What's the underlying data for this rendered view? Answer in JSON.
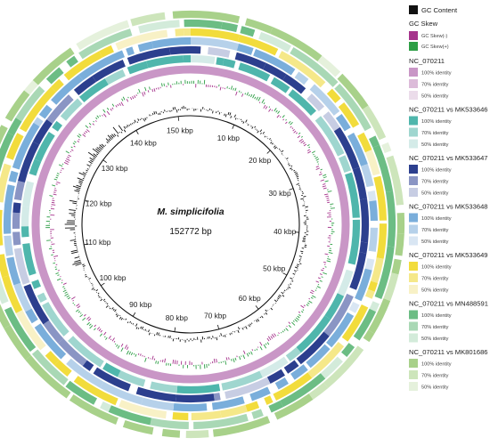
{
  "genome": {
    "name": "M. simplicifolia",
    "length_label": "152772 bp",
    "length_bp": 152772
  },
  "kbp_labels": [
    "10 kbp",
    "20 kbp",
    "30 kbp",
    "40 kbp",
    "50 kbp",
    "60 kbp",
    "70 kbp",
    "80 kbp",
    "90 kbp",
    "100 kbp",
    "110 kbp",
    "120 kbp",
    "130 kbp",
    "140 kbp",
    "150 kbp"
  ],
  "kbp_positions": [
    10000,
    20000,
    30000,
    40000,
    50000,
    60000,
    70000,
    80000,
    90000,
    100000,
    110000,
    120000,
    130000,
    140000,
    150000
  ],
  "legend": {
    "gc_content": {
      "label": "GC Content",
      "color": "#111111"
    },
    "gc_skew_title": "GC Skew",
    "gc_skew_minus": {
      "label": "GC Skew(-)",
      "color": "#a6348c"
    },
    "gc_skew_plus": {
      "label": "GC Skew(+)",
      "color": "#2d9e45"
    },
    "groups": [
      {
        "title": "NC_070211",
        "colors": [
          "#c996c6",
          "#dcbbd9",
          "#ebdcea"
        ],
        "items": [
          "100% identity",
          "70% identity",
          "50% identity"
        ]
      },
      {
        "title": "NC_070211 vs MK533646",
        "colors": [
          "#4fb6ac",
          "#9fd6cf",
          "#d4ebe8"
        ],
        "items": [
          "100% identity",
          "70% identity",
          "50% identity"
        ]
      },
      {
        "title": "NC_070211 vs MK533647",
        "colors": [
          "#2c3f8e",
          "#8a95c4",
          "#c7cde3"
        ],
        "items": [
          "100% identity",
          "70% identity",
          "50% identity"
        ]
      },
      {
        "title": "NC_070211 vs MK533648",
        "colors": [
          "#7aaedb",
          "#b6d1ea",
          "#d9e6f3"
        ],
        "items": [
          "100% identity",
          "70% identity",
          "50% identity"
        ]
      },
      {
        "title": "NC_070211 vs MK533649",
        "colors": [
          "#f2dc3c",
          "#f5e889",
          "#f8f1c6"
        ],
        "items": [
          "100% identity",
          "70% identity",
          "50% identity"
        ]
      },
      {
        "title": "NC_070211 vs MN488591",
        "colors": [
          "#6cbd84",
          "#a9d8b5",
          "#d3ebda"
        ],
        "items": [
          "100% identity",
          "70% identity",
          "50% identity"
        ]
      },
      {
        "title": "NC_070211 vs MK801686",
        "colors": [
          "#a8d18a",
          "#cde5bb",
          "#e5f1dc"
        ],
        "items": [
          "100% identity",
          "70% identity",
          "50% identity"
        ]
      }
    ]
  }
}
